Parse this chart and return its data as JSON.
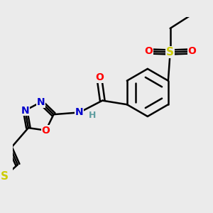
{
  "background_color": "#ebebeb",
  "bond_color": "#000000",
  "bond_width": 1.8,
  "atom_colors": {
    "C": "#000000",
    "N": "#0000cc",
    "O": "#ff0000",
    "S_sulfonyl": "#cccc00",
    "S_thio": "#cccc00",
    "H": "#5f9ea0"
  },
  "font_size": 10
}
